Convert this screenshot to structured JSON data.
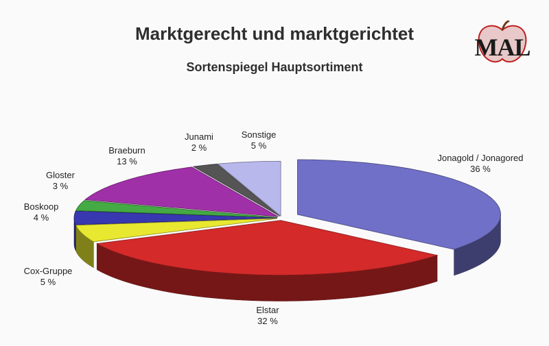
{
  "page": {
    "title": "Marktgerecht und marktgerichtet",
    "subtitle": "Sortenspiegel Hauptsortiment",
    "logo_text": "MAL"
  },
  "chart_data": {
    "type": "pie",
    "style": "3d-exploded",
    "title": "Marktgerecht und marktgerichtet",
    "subtitle": "Sortenspiegel Hauptsortiment",
    "unit": "%",
    "slices": [
      {
        "name": "Jonagold / Jonagored",
        "value": 36,
        "label": "36 %",
        "color": "#7070c8"
      },
      {
        "name": "Elstar",
        "value": 32,
        "label": "32 %",
        "color": "#d42a2a"
      },
      {
        "name": "Cox-Gruppe",
        "value": 5,
        "label": "5 %",
        "color": "#e8e830"
      },
      {
        "name": "Boskoop",
        "value": 4,
        "label": "4 %",
        "color": "#3838b0"
      },
      {
        "name": "Gloster",
        "value": 3,
        "label": "3 %",
        "color": "#44aa44"
      },
      {
        "name": "Braeburn",
        "value": 13,
        "label": "13 %",
        "color": "#a030a8"
      },
      {
        "name": "Junami",
        "value": 2,
        "label": "2 %",
        "color": "#555555"
      },
      {
        "name": "Sonstige",
        "value": 5,
        "label": "5 %",
        "color": "#b8b8ec"
      }
    ]
  }
}
